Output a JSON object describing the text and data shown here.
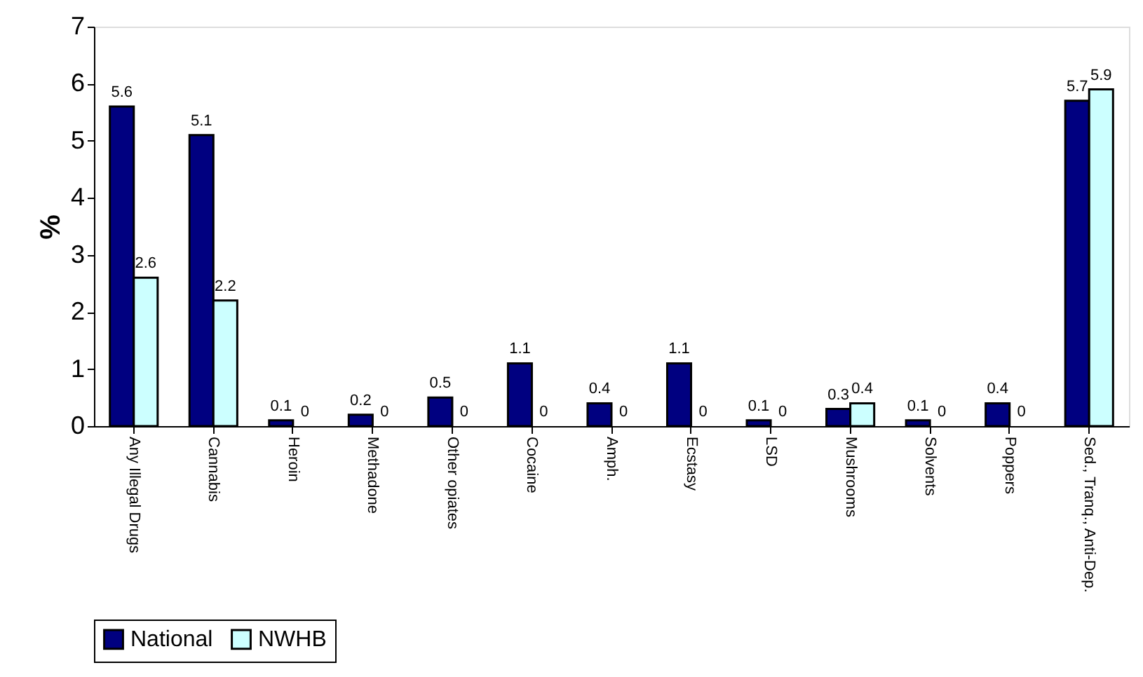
{
  "chart_data": {
    "type": "bar",
    "ylabel": "%",
    "categories": [
      "Any Illegal Drugs",
      "Cannabis",
      "Heroin",
      "Methadone",
      "Other opiates",
      "Cocaine",
      "Amph.",
      "Ecstasy",
      "LSD",
      "Mushrooms",
      "Solvents",
      "Poppers",
      "Sed., Tranq., Anti-Dep."
    ],
    "series": [
      {
        "name": "National",
        "color": "#000080",
        "values": [
          5.6,
          5.1,
          0.1,
          0.2,
          0.5,
          1.1,
          0.4,
          1.1,
          0.1,
          0.3,
          0.1,
          0.4,
          5.7
        ]
      },
      {
        "name": "NWHB",
        "color": "#ccffff",
        "values": [
          2.6,
          2.2,
          0,
          0,
          0,
          0,
          0,
          0,
          0,
          0.4,
          0,
          0,
          5.9
        ]
      }
    ],
    "ylim": [
      0,
      7
    ],
    "yticks": [
      0,
      1,
      2,
      3,
      4,
      5,
      6,
      7
    ],
    "data_labels": true,
    "legend": "bottom",
    "grid": false
  }
}
